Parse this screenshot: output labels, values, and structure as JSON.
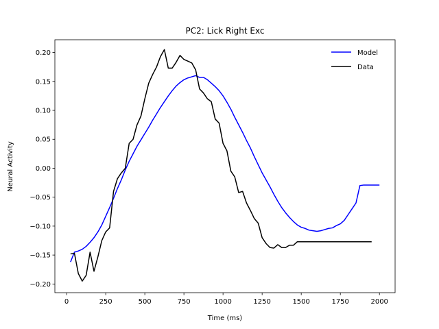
{
  "chart_data": {
    "type": "line",
    "title": "PC2: Lick Right Exc",
    "xlabel": "Time (ms)",
    "ylabel": "Neural Activity",
    "xlim": [
      -75,
      2100
    ],
    "ylim": [
      -0.215,
      0.222
    ],
    "xticks": [
      0,
      250,
      500,
      750,
      1000,
      1250,
      1500,
      1750,
      2000
    ],
    "yticks": [
      -0.2,
      -0.15,
      -0.1,
      -0.05,
      0.0,
      0.05,
      0.1,
      0.15,
      0.2
    ],
    "xtick_labels": [
      "0",
      "250",
      "500",
      "750",
      "1000",
      "1250",
      "1500",
      "1750",
      "2000"
    ],
    "ytick_labels": [
      "−0.20",
      "−0.15",
      "−0.10",
      "−0.05",
      "0.00",
      "0.05",
      "0.10",
      "0.15",
      "0.20"
    ],
    "grid": false,
    "legend_position": "top-right",
    "series": [
      {
        "name": "Model",
        "color": "#0000ff",
        "x": [
          25,
          50,
          75,
          100,
          125,
          150,
          175,
          200,
          225,
          250,
          275,
          300,
          325,
          350,
          375,
          400,
          425,
          450,
          475,
          500,
          525,
          550,
          575,
          600,
          625,
          650,
          675,
          700,
          725,
          750,
          775,
          800,
          825,
          850,
          875,
          900,
          925,
          950,
          975,
          1000,
          1025,
          1050,
          1075,
          1100,
          1125,
          1150,
          1175,
          1200,
          1225,
          1250,
          1275,
          1300,
          1325,
          1350,
          1375,
          1400,
          1425,
          1450,
          1475,
          1500,
          1525,
          1550,
          1575,
          1600,
          1625,
          1650,
          1675,
          1700,
          1725,
          1750,
          1775,
          1800,
          1825,
          1850,
          1875,
          1900,
          1925,
          1950,
          1975,
          2000
        ],
        "y": [
          -0.162,
          -0.145,
          -0.143,
          -0.14,
          -0.135,
          -0.128,
          -0.12,
          -0.11,
          -0.098,
          -0.083,
          -0.068,
          -0.052,
          -0.035,
          -0.02,
          -0.003,
          0.012,
          0.025,
          0.038,
          0.049,
          0.06,
          0.071,
          0.083,
          0.094,
          0.105,
          0.115,
          0.125,
          0.134,
          0.142,
          0.148,
          0.153,
          0.156,
          0.158,
          0.16,
          0.157,
          0.157,
          0.153,
          0.147,
          0.141,
          0.134,
          0.125,
          0.114,
          0.102,
          0.088,
          0.075,
          0.062,
          0.048,
          0.035,
          0.02,
          0.006,
          -0.008,
          -0.02,
          -0.032,
          -0.045,
          -0.057,
          -0.068,
          -0.077,
          -0.085,
          -0.092,
          -0.098,
          -0.102,
          -0.104,
          -0.107,
          -0.108,
          -0.109,
          -0.108,
          -0.106,
          -0.104,
          -0.103,
          -0.099,
          -0.096,
          -0.09,
          -0.08,
          -0.07,
          -0.06,
          -0.03,
          -0.029,
          -0.029,
          -0.029,
          -0.029,
          -0.029
        ]
      },
      {
        "name": "Data",
        "color": "#000000",
        "x": [
          25,
          50,
          75,
          100,
          125,
          150,
          175,
          200,
          225,
          250,
          275,
          300,
          325,
          350,
          375,
          400,
          425,
          450,
          475,
          500,
          525,
          550,
          575,
          600,
          625,
          650,
          675,
          700,
          725,
          750,
          775,
          800,
          825,
          850,
          875,
          900,
          925,
          950,
          975,
          1000,
          1025,
          1050,
          1075,
          1100,
          1125,
          1150,
          1175,
          1200,
          1225,
          1250,
          1275,
          1300,
          1325,
          1350,
          1375,
          1400,
          1425,
          1450,
          1475,
          1500,
          1525,
          1550,
          1575,
          1600,
          1625,
          1650,
          1675,
          1700,
          1725,
          1750,
          1775,
          1800,
          1825,
          1850,
          1875,
          1900,
          1925,
          1950
        ],
        "y": [
          -0.148,
          -0.147,
          -0.182,
          -0.195,
          -0.185,
          -0.145,
          -0.178,
          -0.153,
          -0.125,
          -0.11,
          -0.103,
          -0.04,
          -0.018,
          -0.008,
          0.0,
          0.043,
          0.05,
          0.075,
          0.09,
          0.12,
          0.147,
          0.162,
          0.175,
          0.193,
          0.205,
          0.173,
          0.173,
          0.183,
          0.195,
          0.188,
          0.185,
          0.182,
          0.17,
          0.137,
          0.13,
          0.12,
          0.115,
          0.085,
          0.078,
          0.043,
          0.03,
          -0.005,
          -0.015,
          -0.042,
          -0.04,
          -0.06,
          -0.073,
          -0.087,
          -0.095,
          -0.12,
          -0.13,
          -0.137,
          -0.138,
          -0.132,
          -0.137,
          -0.137,
          -0.133,
          -0.133,
          -0.127,
          -0.127,
          -0.127,
          -0.127,
          -0.127,
          -0.127,
          -0.127,
          -0.127,
          -0.127,
          -0.127,
          -0.127,
          -0.127,
          -0.127,
          -0.127,
          -0.127,
          -0.127,
          -0.127,
          -0.127,
          -0.127,
          -0.127
        ]
      }
    ]
  }
}
